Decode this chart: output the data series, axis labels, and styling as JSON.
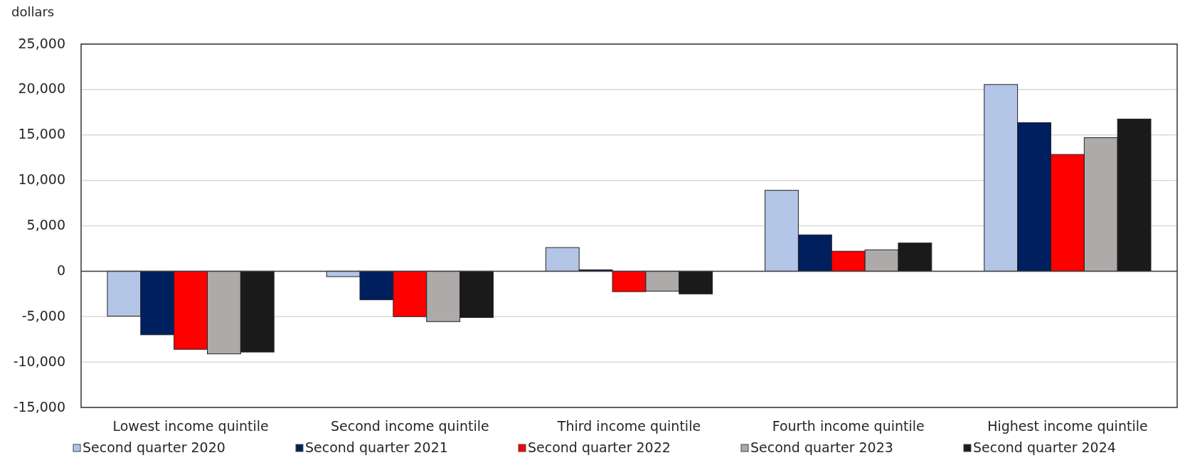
{
  "chart_data": {
    "type": "bar",
    "ylabel": "dollars",
    "categories": [
      "Lowest income quintile",
      "Second income quintile",
      "Third income quintile",
      "Fourth income quintile",
      "Highest income quintile"
    ],
    "series": [
      {
        "name": "Second quarter 2020",
        "color": "#b4c6e7",
        "values": [
          -4950,
          -600,
          2600,
          8900,
          20550
        ]
      },
      {
        "name": "Second quarter 2021",
        "color": "#001f5f",
        "values": [
          -7000,
          -3150,
          150,
          4000,
          16350
        ]
      },
      {
        "name": "Second quarter 2022",
        "color": "#ff0000",
        "values": [
          -8600,
          -5000,
          -2250,
          2200,
          12850
        ]
      },
      {
        "name": "Second quarter 2023",
        "color": "#aeaaaa",
        "values": [
          -9100,
          -5550,
          -2200,
          2350,
          14700
        ]
      },
      {
        "name": "Second quarter 2024",
        "color": "#1a1a1a",
        "values": [
          -8900,
          -5100,
          -2500,
          3100,
          16750
        ]
      }
    ],
    "ylim": [
      -15000,
      25000
    ],
    "yticks": [
      {
        "value": -15000,
        "label": "-15,000"
      },
      {
        "value": -10000,
        "label": "-10,000"
      },
      {
        "value": -5000,
        "label": "-5,000"
      },
      0,
      {
        "value": 5000,
        "label": "5,000"
      },
      {
        "value": 10000,
        "label": "10,000"
      },
      {
        "value": 15000,
        "label": "15,000"
      },
      {
        "value": 20000,
        "label": "20,000"
      },
      {
        "value": 25000,
        "label": "25,000"
      }
    ],
    "grid": "y",
    "legend": "bottom"
  }
}
